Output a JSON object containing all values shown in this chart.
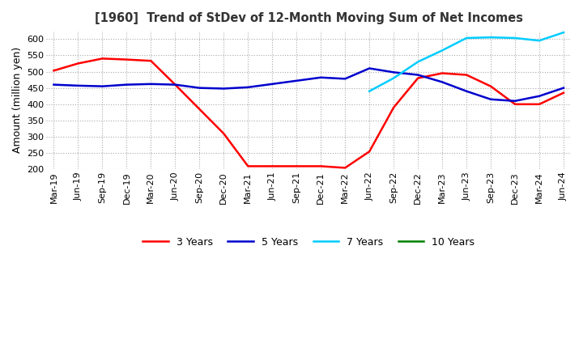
{
  "title": "[1960]  Trend of StDev of 12-Month Moving Sum of Net Incomes",
  "ylabel": "Amount (million yen)",
  "ylim": [
    200,
    625
  ],
  "yticks": [
    200,
    250,
    300,
    350,
    400,
    450,
    500,
    550,
    600
  ],
  "legend_labels": [
    "3 Years",
    "5 Years",
    "7 Years",
    "10 Years"
  ],
  "legend_colors": [
    "#ff0000",
    "#0000cd",
    "#00ccff",
    "#008000"
  ],
  "background_color": "#ffffff",
  "grid_color": "#aaaaaa",
  "x_labels": [
    "Mar-19",
    "Jun-19",
    "Sep-19",
    "Dec-19",
    "Mar-20",
    "Jun-20",
    "Sep-20",
    "Dec-20",
    "Mar-21",
    "Jun-21",
    "Sep-21",
    "Dec-21",
    "Mar-22",
    "Jun-22",
    "Sep-22",
    "Dec-22",
    "Mar-23",
    "Jun-23",
    "Sep-23",
    "Dec-23",
    "Mar-24",
    "Jun-24"
  ],
  "series_3y": [
    503,
    525,
    540,
    537,
    533,
    460,
    385,
    310,
    210,
    210,
    210,
    210,
    205,
    255,
    390,
    480,
    495,
    490,
    455,
    400,
    400,
    435
  ],
  "series_5y": [
    460,
    457,
    455,
    460,
    462,
    460,
    450,
    448,
    452,
    462,
    472,
    482,
    478,
    510,
    498,
    490,
    468,
    440,
    415,
    410,
    425,
    450
  ],
  "series_7y": [
    null,
    null,
    null,
    null,
    null,
    null,
    null,
    null,
    null,
    null,
    null,
    null,
    null,
    440,
    480,
    530,
    565,
    603,
    605,
    603,
    595,
    620
  ],
  "series_10y": [
    null,
    null,
    null,
    null,
    null,
    null,
    null,
    null,
    null,
    null,
    null,
    null,
    null,
    null,
    null,
    null,
    null,
    null,
    null,
    null,
    null,
    null
  ],
  "title_color": "#333333",
  "title_fontsize": 10.5,
  "tick_fontsize": 8,
  "ylabel_fontsize": 9
}
